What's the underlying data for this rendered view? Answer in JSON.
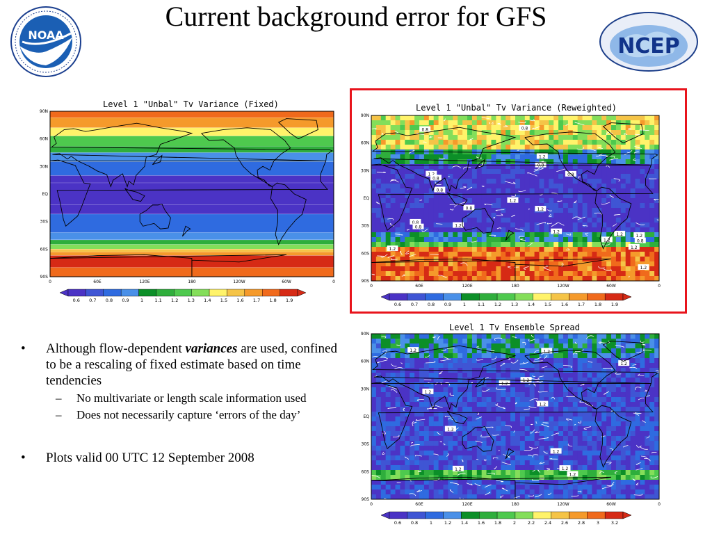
{
  "slide": {
    "title": "Current background error for GFS",
    "logo_left": {
      "icon": "noaa-logo-icon",
      "inner_text": "NOAA"
    },
    "logo_right": {
      "icon": "ncep-logo-icon",
      "inner_text": "NCEP"
    }
  },
  "bullets": [
    {
      "type": "main",
      "pre": "Although flow-dependent ",
      "em": "variances",
      "post": " are used, confined to be a rescaling of fixed estimate based on time tendencies"
    },
    {
      "type": "sub",
      "text": "No multivariate or length scale information used"
    },
    {
      "type": "sub",
      "text": "Does not necessarily capture ‘errors of the day’"
    },
    {
      "type": "main",
      "pre": "Plots valid 00 UTC 12 September 2008",
      "em": "",
      "post": ""
    }
  ],
  "colors": {
    "highlight_box": "#e8141c",
    "ramp1": [
      "#4b33c5",
      "#3f55d4",
      "#2f6be0",
      "#4a90e8",
      "#0c8f28",
      "#2fae3c",
      "#4ec94e",
      "#84de5a",
      "#fff36a",
      "#f5c447",
      "#f59a2b",
      "#f06a1c",
      "#d62a15"
    ],
    "ramp2": [
      "#4b33c5",
      "#3f55d4",
      "#2f6be0",
      "#4a90e8",
      "#0c8f28",
      "#2fae3c",
      "#4ec94e",
      "#84de5a",
      "#fff36a",
      "#f5c447",
      "#f59a2b",
      "#f06a1c",
      "#d62a15"
    ]
  },
  "chart_data": [
    {
      "type": "heatmap",
      "title": "Level 1 \"Unbal\" Tv Variance (Fixed)",
      "x_ticks": [
        "0",
        "60E",
        "120E",
        "180",
        "120W",
        "60W",
        "0"
      ],
      "y_ticks": [
        "90N",
        "60N",
        "30N",
        "EQ",
        "30S",
        "60S",
        "90S"
      ],
      "legend_labels": [
        "0.6",
        "0.7",
        "0.8",
        "0.9",
        "1",
        "1.1",
        "1.2",
        "1.3",
        "1.4",
        "1.5",
        "1.6",
        "1.7",
        "1.8",
        "1.9"
      ],
      "field": "zonal bands",
      "lat_bands": [
        {
          "lat_from": 90,
          "lat_to": 83,
          "value": 1.7
        },
        {
          "lat_from": 83,
          "lat_to": 72,
          "value": 1.6
        },
        {
          "lat_from": 72,
          "lat_to": 63,
          "value": 1.4
        },
        {
          "lat_from": 63,
          "lat_to": 52,
          "value": 1.2
        },
        {
          "lat_from": 52,
          "lat_to": 45,
          "value": 1.1
        },
        {
          "lat_from": 45,
          "lat_to": 35,
          "value": 0.9
        },
        {
          "lat_from": 35,
          "lat_to": 20,
          "value": 0.8
        },
        {
          "lat_from": 20,
          "lat_to": 12,
          "value": 0.7
        },
        {
          "lat_from": 12,
          "lat_to": -12,
          "value": 0.6
        },
        {
          "lat_from": -12,
          "lat_to": -22,
          "value": 0.7
        },
        {
          "lat_from": -22,
          "lat_to": -42,
          "value": 0.8
        },
        {
          "lat_from": -42,
          "lat_to": -50,
          "value": 0.9
        },
        {
          "lat_from": -50,
          "lat_to": -55,
          "value": 1.1
        },
        {
          "lat_from": -55,
          "lat_to": -60,
          "value": 1.3
        },
        {
          "lat_from": -60,
          "lat_to": -63,
          "value": 1.5
        },
        {
          "lat_from": -63,
          "lat_to": -67,
          "value": 1.6
        },
        {
          "lat_from": -67,
          "lat_to": -80,
          "value": 1.8
        },
        {
          "lat_from": -80,
          "lat_to": -90,
          "value": 1.7
        }
      ]
    },
    {
      "type": "heatmap",
      "title": "Level 1 \"Unbal\" Tv Variance (Reweighted)",
      "x_ticks": [
        "0",
        "60E",
        "120E",
        "180",
        "120W",
        "60W",
        "0"
      ],
      "y_ticks": [
        "90N",
        "60N",
        "30N",
        "EQ",
        "30S",
        "60S",
        "90S"
      ],
      "legend_labels": [
        "0.6",
        "0.7",
        "0.8",
        "0.9",
        "1",
        "1.1",
        "1.2",
        "1.3",
        "1.4",
        "1.5",
        "1.6",
        "1.7",
        "1.8",
        "1.9"
      ],
      "contour_labels": [
        "1.2",
        "1.2",
        "1.2",
        "1.2",
        "1.2",
        "1.2",
        "1.2",
        "1.2",
        "0.8",
        "0.8",
        "0.8",
        "0.8",
        "0.8",
        "0.8",
        "0.8",
        "0.8",
        "0.8",
        "0.8",
        "1.2",
        "1.2",
        "1.2",
        "1.2"
      ],
      "highlighted": true
    },
    {
      "type": "heatmap",
      "title": "Level 1 Tv Ensemble Spread",
      "x_ticks": [
        "0",
        "60E",
        "120E",
        "180",
        "120W",
        "60W",
        "0"
      ],
      "y_ticks": [
        "90N",
        "60N",
        "30N",
        "EQ",
        "30S",
        "60S",
        "90S"
      ],
      "legend_labels": [
        "0.6",
        "0.8",
        "1",
        "1.2",
        "1.4",
        "1.6",
        "1.8",
        "2",
        "2.2",
        "2.4",
        "2.6",
        "2.8",
        "3",
        "3.2"
      ],
      "contour_labels": [
        "1.2",
        "1.2",
        "1.2",
        "1.2",
        "1.2",
        "1.2",
        "1.2",
        "1.2",
        "1.2",
        "1.2",
        "1.2",
        "1.2"
      ]
    }
  ]
}
